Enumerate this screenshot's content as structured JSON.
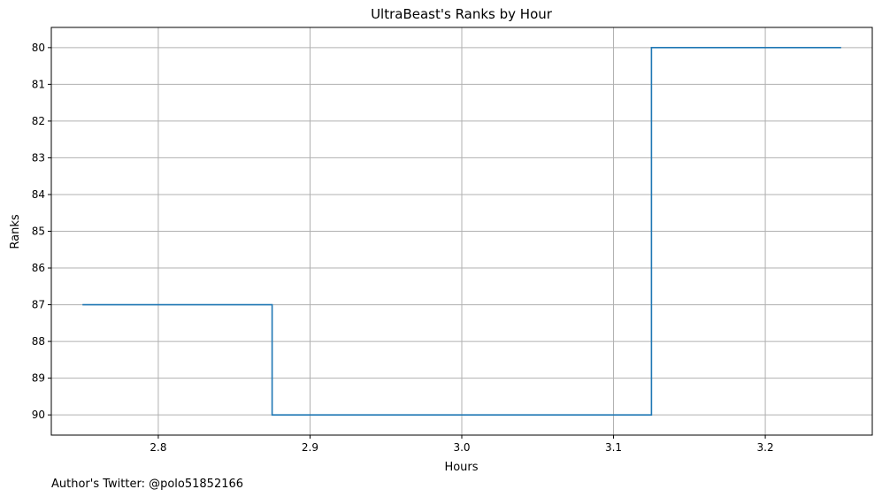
{
  "chart_data": {
    "type": "line",
    "title": "UltraBeast's Ranks by Hour",
    "xlabel": "Hours",
    "ylabel": "Ranks",
    "x": [
      2.75,
      2.875,
      2.875,
      3.125,
      3.125,
      3.25
    ],
    "y": [
      87,
      87,
      90,
      90,
      80,
      80
    ],
    "step": "post",
    "xlim": [
      2.7295,
      3.2705
    ],
    "ylim": [
      90.55,
      79.45
    ],
    "y_inverted": true,
    "xticks": [
      2.8,
      2.9,
      3.0,
      3.1,
      3.2
    ],
    "xtick_labels": [
      "2.8",
      "2.9",
      "3.0",
      "3.1",
      "3.2"
    ],
    "yticks": [
      80,
      81,
      82,
      83,
      84,
      85,
      86,
      87,
      88,
      89,
      90
    ],
    "ytick_labels": [
      "80",
      "81",
      "82",
      "83",
      "84",
      "85",
      "86",
      "87",
      "88",
      "89",
      "90"
    ],
    "grid": true,
    "line_color": "#1f77b4",
    "grid_color": "#b0b0b0"
  },
  "footer": {
    "text": "Author's Twitter: @polo51852166"
  }
}
